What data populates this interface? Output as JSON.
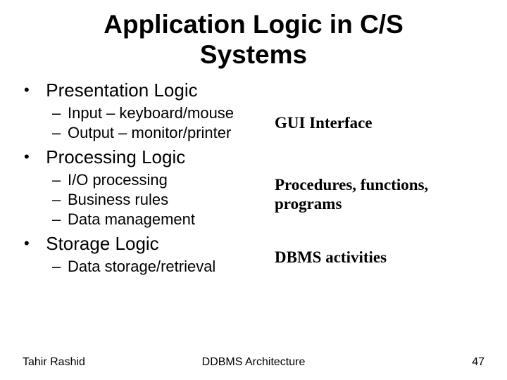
{
  "title_line1": "Application Logic in C/S",
  "title_line2": "Systems",
  "sections": {
    "s1": {
      "heading": "Presentation Logic",
      "items": {
        "i1": "Input – keyboard/mouse",
        "i2": "Output – monitor/printer"
      },
      "annotation": "GUI Interface"
    },
    "s2": {
      "heading": "Processing Logic",
      "items": {
        "i1": "I/O processing",
        "i2": "Business rules",
        "i3": "Data management"
      },
      "annotation": "Procedures, functions, programs"
    },
    "s3": {
      "heading": "Storage Logic",
      "items": {
        "i1": "Data storage/retrieval"
      },
      "annotation": "DBMS activities"
    }
  },
  "footer": {
    "author": "Tahir Rashid",
    "center": "DDBMS Architecture",
    "pagenum": "47"
  },
  "colors": {
    "background": "#ffffff",
    "text": "#000000"
  }
}
